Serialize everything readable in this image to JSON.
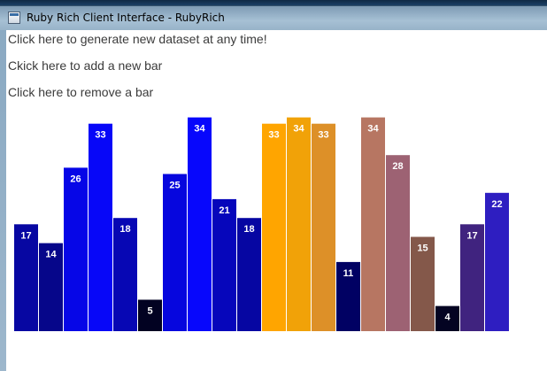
{
  "window": {
    "title": "Ruby Rich Client Interface - RubyRich"
  },
  "controls": {
    "generate_label": "Click here to generate new dataset at any time!",
    "add_bar_label": "Ckick here to add a new bar",
    "remove_bar_label": "Click here to remove a bar"
  },
  "chart_data": {
    "type": "bar",
    "title": "",
    "xlabel": "",
    "ylabel": "",
    "ylim": [
      0,
      35
    ],
    "grid": false,
    "legend": "none",
    "data_labels": "inside-top",
    "values": [
      17,
      14,
      26,
      33,
      18,
      5,
      25,
      34,
      21,
      18,
      33,
      34,
      33,
      11,
      34,
      28,
      15,
      4,
      17,
      22
    ],
    "colors": [
      "#0707a2",
      "#06068a",
      "#0606e7",
      "#0707f8",
      "#0707b4",
      "#020222",
      "#0606de",
      "#0707fc",
      "#0606bb",
      "#0606a2",
      "#ffa500",
      "#f1a208",
      "#dd9028",
      "#010163",
      "#b77662",
      "#9d6273",
      "#84584a",
      "#040422",
      "#40237f",
      "#2e1ec1"
    ]
  }
}
